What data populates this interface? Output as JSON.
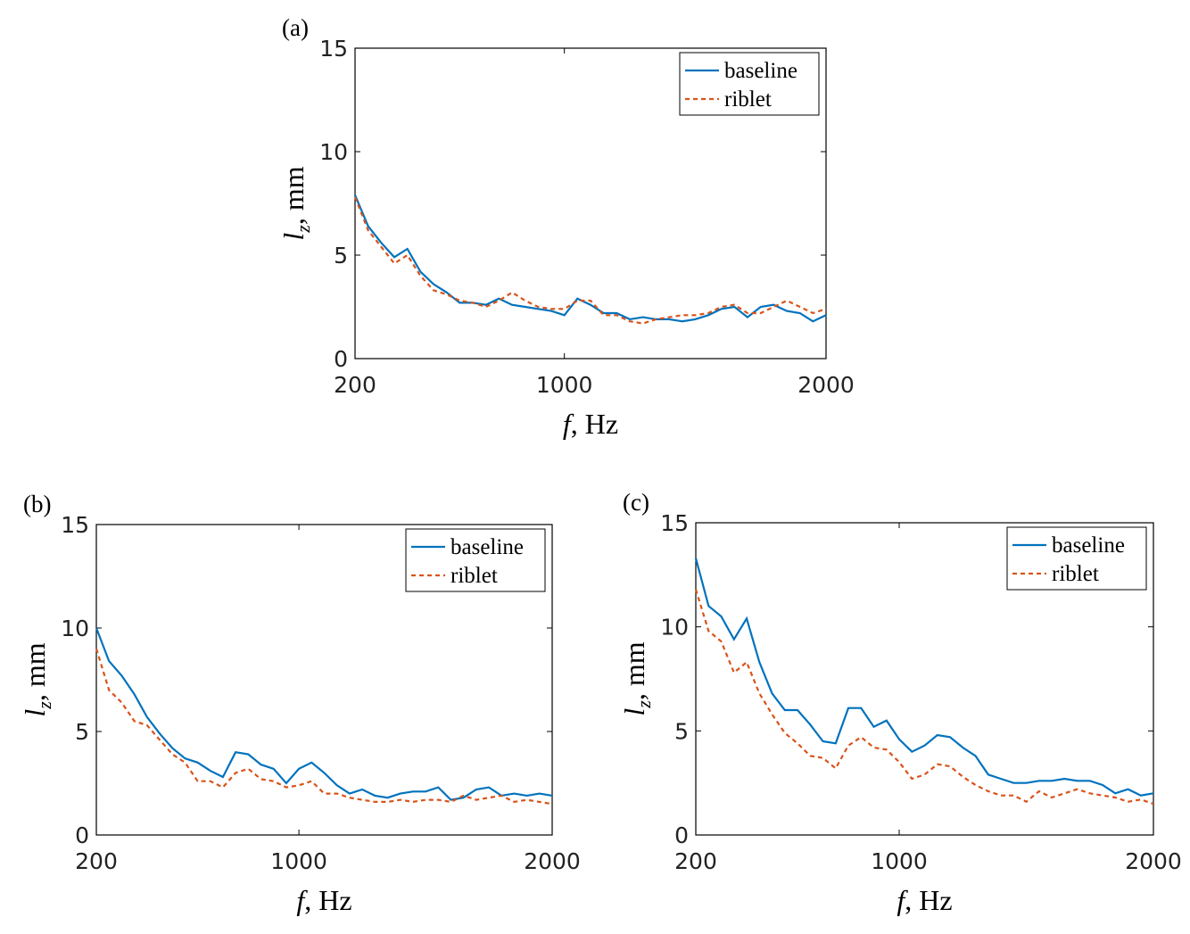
{
  "chart_data": [
    {
      "type": "line",
      "panel": "(a)",
      "xlabel": {
        "symbol": "f",
        "unit": ", Hz"
      },
      "ylabel": {
        "symbol": "l",
        "subscript": "z",
        "unit": ", mm"
      },
      "x": [
        200,
        250,
        300,
        350,
        400,
        450,
        500,
        550,
        600,
        650,
        700,
        750,
        800,
        850,
        900,
        950,
        1000,
        1050,
        1100,
        1150,
        1200,
        1250,
        1300,
        1350,
        1400,
        1450,
        1500,
        1550,
        1600,
        1650,
        1700,
        1750,
        1800,
        1850,
        1900,
        1950,
        2000
      ],
      "xlim": [
        200,
        2000
      ],
      "xticks": [
        200,
        1000,
        2000
      ],
      "ylim": [
        0,
        15
      ],
      "yticks": [
        0,
        5,
        10,
        15
      ],
      "legend": "upper right",
      "series": [
        {
          "name": "baseline",
          "color": "#0072bd",
          "style": "solid",
          "values": [
            7.9,
            6.4,
            5.6,
            4.9,
            5.3,
            4.2,
            3.6,
            3.2,
            2.7,
            2.7,
            2.6,
            2.9,
            2.6,
            2.5,
            2.4,
            2.3,
            2.1,
            2.9,
            2.6,
            2.2,
            2.2,
            1.9,
            2.0,
            1.9,
            1.9,
            1.8,
            1.9,
            2.1,
            2.4,
            2.5,
            2.0,
            2.5,
            2.6,
            2.3,
            2.2,
            1.8,
            2.1
          ]
        },
        {
          "name": "riblet",
          "color": "#d95319",
          "style": "dashed",
          "values": [
            7.8,
            6.2,
            5.4,
            4.6,
            5.0,
            4.0,
            3.3,
            3.1,
            2.8,
            2.7,
            2.5,
            2.8,
            3.2,
            2.8,
            2.5,
            2.4,
            2.4,
            2.8,
            2.8,
            2.1,
            2.1,
            1.8,
            1.7,
            1.9,
            2.0,
            2.1,
            2.1,
            2.2,
            2.5,
            2.6,
            2.2,
            2.2,
            2.5,
            2.8,
            2.5,
            2.2,
            2.4
          ]
        }
      ]
    },
    {
      "type": "line",
      "panel": "(b)",
      "xlabel": {
        "symbol": "f",
        "unit": ", Hz"
      },
      "ylabel": {
        "symbol": "l",
        "subscript": "z",
        "unit": ", mm"
      },
      "x": [
        200,
        250,
        300,
        350,
        400,
        450,
        500,
        550,
        600,
        650,
        700,
        750,
        800,
        850,
        900,
        950,
        1000,
        1050,
        1100,
        1150,
        1200,
        1250,
        1300,
        1350,
        1400,
        1450,
        1500,
        1550,
        1600,
        1650,
        1700,
        1750,
        1800,
        1850,
        1900,
        1950,
        2000
      ],
      "xlim": [
        200,
        2000
      ],
      "xticks": [
        200,
        1000,
        2000
      ],
      "ylim": [
        0,
        15
      ],
      "yticks": [
        0,
        5,
        10,
        15
      ],
      "legend": "upper right",
      "series": [
        {
          "name": "baseline",
          "color": "#0072bd",
          "style": "solid",
          "values": [
            10,
            8.4,
            7.7,
            6.8,
            5.7,
            4.9,
            4.2,
            3.7,
            3.5,
            3.1,
            2.8,
            4.0,
            3.9,
            3.4,
            3.2,
            2.5,
            3.2,
            3.5,
            3.0,
            2.4,
            2.0,
            2.2,
            1.9,
            1.8,
            2.0,
            2.1,
            2.1,
            2.3,
            1.7,
            1.8,
            2.2,
            2.3,
            1.9,
            2.0,
            1.9,
            2.0,
            1.9
          ]
        },
        {
          "name": "riblet",
          "color": "#d95319",
          "style": "dashed",
          "values": [
            9.0,
            7.0,
            6.4,
            5.5,
            5.3,
            4.6,
            3.9,
            3.5,
            2.6,
            2.6,
            2.3,
            3.0,
            3.2,
            2.7,
            2.6,
            2.3,
            2.4,
            2.6,
            2.0,
            2.0,
            1.8,
            1.7,
            1.6,
            1.6,
            1.7,
            1.6,
            1.7,
            1.7,
            1.6,
            1.9,
            1.7,
            1.8,
            1.9,
            1.6,
            1.7,
            1.6,
            1.5
          ]
        }
      ]
    },
    {
      "type": "line",
      "panel": "(c)",
      "xlabel": {
        "symbol": "f",
        "unit": ", Hz"
      },
      "ylabel": {
        "symbol": "l",
        "subscript": "z",
        "unit": ", mm"
      },
      "x": [
        200,
        250,
        300,
        350,
        400,
        450,
        500,
        550,
        600,
        650,
        700,
        750,
        800,
        850,
        900,
        950,
        1000,
        1050,
        1100,
        1150,
        1200,
        1250,
        1300,
        1350,
        1400,
        1450,
        1500,
        1550,
        1600,
        1650,
        1700,
        1750,
        1800,
        1850,
        1900,
        1950,
        2000
      ],
      "xlim": [
        200,
        2000
      ],
      "xticks": [
        200,
        1000,
        2000
      ],
      "ylim": [
        0,
        15
      ],
      "yticks": [
        0,
        5,
        10,
        15
      ],
      "legend": "upper right",
      "series": [
        {
          "name": "baseline",
          "color": "#0072bd",
          "style": "solid",
          "values": [
            13.3,
            11.0,
            10.5,
            9.4,
            10.4,
            8.3,
            6.8,
            6.0,
            6.0,
            5.3,
            4.5,
            4.4,
            6.1,
            6.1,
            5.2,
            5.5,
            4.6,
            4.0,
            4.3,
            4.8,
            4.7,
            4.2,
            3.8,
            2.9,
            2.7,
            2.5,
            2.5,
            2.6,
            2.6,
            2.7,
            2.6,
            2.6,
            2.4,
            2.0,
            2.2,
            1.9,
            2.0
          ]
        },
        {
          "name": "riblet",
          "color": "#d95319",
          "style": "dashed",
          "values": [
            11.8,
            9.8,
            9.3,
            7.8,
            8.3,
            6.8,
            5.8,
            4.9,
            4.4,
            3.8,
            3.7,
            3.2,
            4.3,
            4.7,
            4.2,
            4.1,
            3.5,
            2.7,
            2.9,
            3.4,
            3.3,
            2.8,
            2.4,
            2.1,
            1.9,
            1.9,
            1.6,
            2.1,
            1.8,
            2.0,
            2.2,
            2.0,
            1.9,
            1.8,
            1.6,
            1.7,
            1.5
          ]
        }
      ]
    }
  ]
}
